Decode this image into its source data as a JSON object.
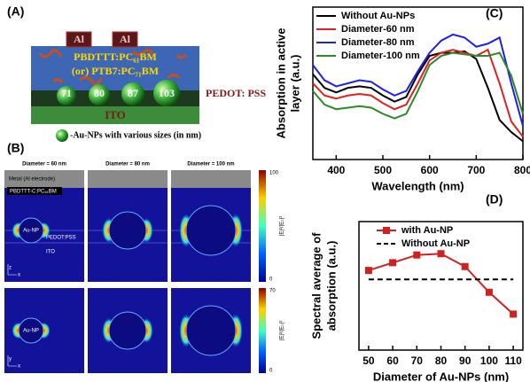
{
  "panel_labels": [
    "(A)",
    "(B)",
    "(C)",
    "(D)"
  ],
  "device": {
    "electrodes": [
      "Al",
      "Al"
    ],
    "active_layer": [
      "PBDTTT:PC₆₁BM",
      "(or) PTB7:PC₇₁BM"
    ],
    "np_sizes": [
      "71",
      "80",
      "87",
      "103"
    ],
    "pedot": "PEDOT: PSS",
    "ito": "ITO",
    "legend": "-Au-NPs with various sizes (in nm)"
  },
  "field_maps": {
    "titles": [
      "Diameter = 60 nm",
      "Diameter = 80 nm",
      "Diameter = 100 nm"
    ],
    "layers": [
      "Metal (Al electrode)",
      "PBDTTT-C:PC₆₁BM",
      "PEDOT:PSS",
      "ITO"
    ],
    "np_labels": [
      "Au-NP",
      "Au-NP"
    ],
    "coord_labels": [
      [
        "z",
        "x"
      ],
      [
        "y",
        "x"
      ]
    ],
    "colorbar_label": "|E|²/|E₀|²",
    "colorbars": [
      {
        "max": 100,
        "min": 0
      },
      {
        "max": 70,
        "min": 0
      }
    ]
  },
  "chart_data": [
    {
      "type": "line",
      "x": [
        350,
        375,
        400,
        425,
        450,
        475,
        500,
        525,
        550,
        575,
        600,
        625,
        650,
        675,
        700,
        725,
        750,
        775,
        800
      ],
      "series": [
        {
          "name": "Without Au-NPs",
          "color": "#000000",
          "values": [
            0.56,
            0.47,
            0.44,
            0.47,
            0.48,
            0.47,
            0.42,
            0.38,
            0.41,
            0.56,
            0.68,
            0.7,
            0.7,
            0.71,
            0.66,
            0.47,
            0.26,
            0.18,
            0.12
          ]
        },
        {
          "name": "Diameter-60 nm",
          "color": "#e02020",
          "values": [
            0.5,
            0.42,
            0.4,
            0.42,
            0.43,
            0.42,
            0.37,
            0.33,
            0.36,
            0.5,
            0.65,
            0.7,
            0.72,
            0.7,
            0.68,
            0.72,
            0.5,
            0.25,
            0.15
          ]
        },
        {
          "name": "Diameter-80 nm",
          "color": "#2020e0",
          "values": [
            0.62,
            0.52,
            0.48,
            0.5,
            0.52,
            0.51,
            0.46,
            0.42,
            0.45,
            0.58,
            0.7,
            0.78,
            0.82,
            0.8,
            0.74,
            0.76,
            0.8,
            0.5,
            0.22
          ]
        },
        {
          "name": "Diameter-100 nm",
          "color": "#2a8a2a",
          "values": [
            0.45,
            0.36,
            0.33,
            0.34,
            0.35,
            0.34,
            0.3,
            0.27,
            0.3,
            0.45,
            0.62,
            0.68,
            0.7,
            0.69,
            0.68,
            0.68,
            0.7,
            0.55,
            0.3
          ]
        }
      ],
      "xlabel": "Wavelength (nm)",
      "ylabel": [
        "Absorption in active",
        "layer (a.u.)"
      ],
      "xlim": [
        350,
        800
      ],
      "xticks": [
        400,
        500,
        600,
        700,
        800
      ],
      "ylim": [
        0,
        1
      ],
      "legend": "upper left"
    },
    {
      "type": "line",
      "x": [
        50,
        60,
        70,
        80,
        90,
        100,
        110
      ],
      "series": [
        {
          "name": "with Au-NP",
          "color": "#cc2222",
          "marker": "square",
          "values": [
            0.62,
            0.68,
            0.74,
            0.75,
            0.65,
            0.45,
            0.28
          ]
        },
        {
          "name": "Without Au-NP",
          "color": "#000000",
          "dashed": true,
          "values": [
            0.55,
            0.55,
            0.55,
            0.55,
            0.55,
            0.55,
            0.55
          ]
        }
      ],
      "xlabel": "Diameter of Au-NPs (nm)",
      "ylabel": [
        "Spectral average of",
        "absorption (a.u.)"
      ],
      "xlim": [
        46,
        114
      ],
      "xticks": [
        50,
        60,
        70,
        80,
        90,
        100,
        110
      ],
      "ylim": [
        0,
        1
      ],
      "legend": "upper right"
    }
  ]
}
